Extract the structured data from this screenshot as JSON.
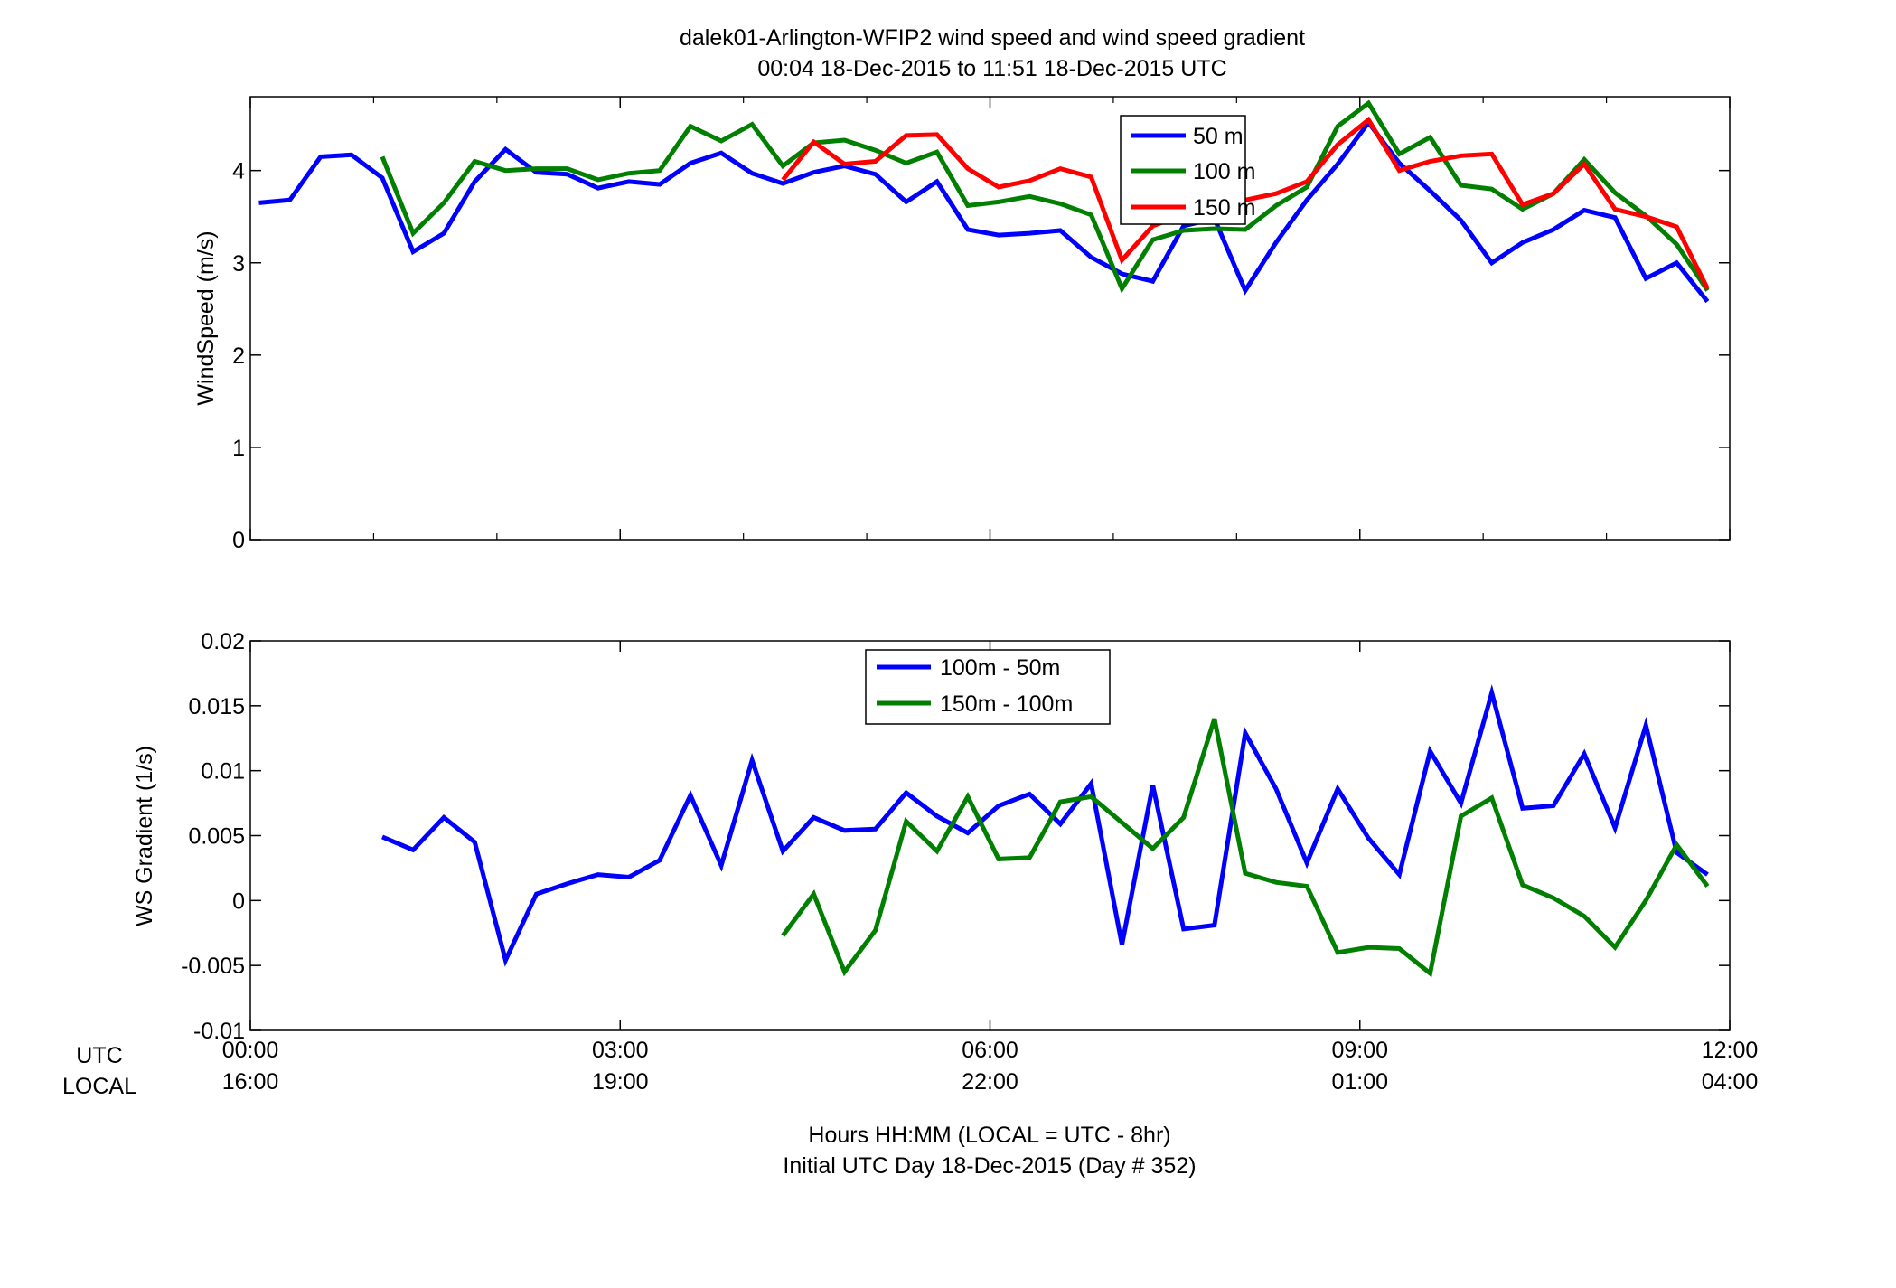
{
  "title": {
    "line1": "dalek01-Arlington-WFIP2  wind speed and wind speed gradient",
    "line2": "00:04 18-Dec-2015 to 11:51 18-Dec-2015  UTC"
  },
  "xaxis": {
    "row_labels": [
      "UTC",
      "LOCAL"
    ],
    "label_line1": "Hours HH:MM  (LOCAL = UTC - 8hr)",
    "label_line2": "Initial UTC Day 18-Dec-2015 (Day # 352)"
  },
  "chart_data": [
    {
      "type": "line",
      "ylabel": "WindSpeed (m/s)",
      "xlim": [
        0,
        12
      ],
      "ylim": [
        0,
        4.8
      ],
      "yticks": [
        "0",
        "1",
        "2",
        "3",
        "4"
      ],
      "ytick_values": [
        0,
        1,
        2,
        3,
        4
      ],
      "xticks": [
        0,
        3,
        6,
        9,
        12
      ],
      "xtick_labels_utc": [
        "00:00",
        "03:00",
        "06:00",
        "09:00",
        "12:00"
      ],
      "xtick_labels_local": [
        "16:00",
        "19:00",
        "22:00",
        "01:00",
        "04:00"
      ],
      "grid": false,
      "legend": "top-right",
      "x": [
        0.07,
        0.32,
        0.57,
        0.82,
        1.07,
        1.32,
        1.57,
        1.82,
        2.07,
        2.32,
        2.57,
        2.82,
        3.07,
        3.32,
        3.57,
        3.82,
        4.07,
        4.32,
        4.57,
        4.82,
        5.07,
        5.32,
        5.57,
        5.82,
        6.07,
        6.32,
        6.57,
        6.82,
        7.07,
        7.32,
        7.57,
        7.82,
        8.07,
        8.32,
        8.57,
        8.82,
        9.07,
        9.32,
        9.57,
        9.82,
        10.07,
        10.32,
        10.57,
        10.82,
        11.07,
        11.32,
        11.57,
        11.82
      ],
      "series": [
        {
          "name": "50 m",
          "color": "#0000ff",
          "values": [
            3.65,
            3.68,
            4.15,
            4.17,
            3.92,
            3.12,
            3.32,
            3.88,
            4.23,
            3.98,
            3.96,
            3.81,
            3.88,
            3.85,
            4.08,
            4.19,
            3.97,
            3.86,
            3.98,
            4.05,
            3.96,
            3.66,
            3.88,
            3.36,
            3.3,
            3.32,
            3.35,
            3.06,
            2.88,
            2.8,
            3.4,
            3.48,
            2.7,
            3.22,
            3.68,
            4.07,
            4.52,
            4.08,
            3.78,
            3.46,
            3.0,
            3.22,
            3.36,
            3.57,
            3.49,
            2.83,
            3.0,
            2.58
          ]
        },
        {
          "name": "100 m",
          "color": "#007f00",
          "values": [
            null,
            null,
            null,
            null,
            4.15,
            3.32,
            3.65,
            4.1,
            4.0,
            4.02,
            4.02,
            3.9,
            3.97,
            4.0,
            4.48,
            4.32,
            4.5,
            4.05,
            4.3,
            4.33,
            4.22,
            4.08,
            4.2,
            3.62,
            3.66,
            3.72,
            3.64,
            3.52,
            2.72,
            3.25,
            3.35,
            3.37,
            3.36,
            3.62,
            3.82,
            4.48,
            4.73,
            4.18,
            4.36,
            3.84,
            3.8,
            3.58,
            3.75,
            4.12,
            3.76,
            3.51,
            3.2,
            2.7
          ]
        },
        {
          "name": "150 m",
          "color": "#ff0000",
          "values": [
            null,
            null,
            null,
            null,
            null,
            null,
            null,
            null,
            null,
            null,
            null,
            null,
            null,
            null,
            null,
            null,
            null,
            3.9,
            4.31,
            4.07,
            4.1,
            4.38,
            4.39,
            4.02,
            3.82,
            3.89,
            4.02,
            3.93,
            3.03,
            3.4,
            3.52,
            3.6,
            3.68,
            3.75,
            3.88,
            4.28,
            4.55,
            4.0,
            4.1,
            4.16,
            4.18,
            3.63,
            3.75,
            4.07,
            3.58,
            3.5,
            3.39,
            2.72
          ]
        }
      ]
    },
    {
      "type": "line",
      "ylabel": "WS Gradient (1/s)",
      "xlim": [
        0,
        12
      ],
      "ylim": [
        -0.01,
        0.02
      ],
      "yticks": [
        "-0.01",
        "-0.005",
        "0",
        "0.005",
        "0.01",
        "0.015",
        "0.02"
      ],
      "ytick_values": [
        -0.01,
        -0.005,
        0,
        0.005,
        0.01,
        0.015,
        0.02
      ],
      "xticks": [
        0,
        3,
        6,
        9,
        12
      ],
      "grid": false,
      "legend": "top-center",
      "x": [
        0.07,
        0.32,
        0.57,
        0.82,
        1.07,
        1.32,
        1.57,
        1.82,
        2.07,
        2.32,
        2.57,
        2.82,
        3.07,
        3.32,
        3.57,
        3.82,
        4.07,
        4.32,
        4.57,
        4.82,
        5.07,
        5.32,
        5.57,
        5.82,
        6.07,
        6.32,
        6.57,
        6.82,
        7.07,
        7.32,
        7.57,
        7.82,
        8.07,
        8.32,
        8.57,
        8.82,
        9.07,
        9.32,
        9.57,
        9.82,
        10.07,
        10.32,
        10.57,
        10.82,
        11.07,
        11.32,
        11.57,
        11.82
      ],
      "series": [
        {
          "name": "100m - 50m",
          "color": "#0000ff",
          "values": [
            null,
            null,
            null,
            null,
            0.0049,
            0.0039,
            0.0064,
            0.0045,
            -0.0046,
            0.0005,
            0.0013,
            0.002,
            0.0018,
            0.0031,
            0.0081,
            0.0027,
            0.0108,
            0.0038,
            0.0064,
            0.0054,
            0.0055,
            0.0083,
            0.0065,
            0.0052,
            0.0073,
            0.0082,
            0.0059,
            0.009,
            -0.0034,
            0.0089,
            -0.0022,
            -0.0019,
            0.0129,
            0.0086,
            0.0029,
            0.0086,
            0.0048,
            0.002,
            0.0115,
            0.0075,
            0.016,
            0.0071,
            0.0073,
            0.0113,
            0.0056,
            0.0135,
            0.0037,
            0.002
          ]
        },
        {
          "name": "150m - 100m",
          "color": "#007f00",
          "values": [
            null,
            null,
            null,
            null,
            null,
            null,
            null,
            null,
            null,
            null,
            null,
            null,
            null,
            null,
            null,
            null,
            null,
            -0.0027,
            0.0005,
            -0.0055,
            -0.0023,
            0.0061,
            0.0038,
            0.008,
            0.0032,
            0.0033,
            0.0076,
            0.008,
            0.006,
            0.004,
            0.0064,
            0.014,
            0.0021,
            0.0014,
            0.0011,
            -0.004,
            -0.0036,
            -0.0037,
            -0.0056,
            0.0065,
            0.0079,
            0.0012,
            0.0002,
            -0.0012,
            -0.0036,
            0.0,
            0.0043,
            0.0011
          ]
        }
      ]
    }
  ]
}
